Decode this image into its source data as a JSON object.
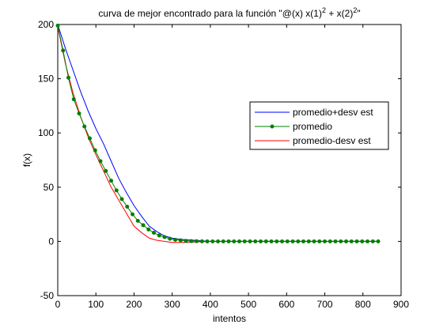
{
  "chart_data": {
    "type": "line",
    "title": "curva de mejor encontrado para la función \"@(x) x(1)",
    "title_exp1": "2",
    "title_mid": " + x(2)",
    "title_exp2": "2",
    "title_end": "\"",
    "xlabel": "intentos",
    "ylabel": "f(x)",
    "xlim": [
      0,
      900
    ],
    "ylim": [
      -50,
      200
    ],
    "xticks": [
      0,
      100,
      200,
      300,
      400,
      500,
      600,
      700,
      800,
      900
    ],
    "yticks": [
      -50,
      0,
      50,
      100,
      150,
      200
    ],
    "grid": false,
    "legend_position": "right",
    "series": [
      {
        "name": "promedio+desv est",
        "color": "#0000ff",
        "marker": "none",
        "x": [
          0,
          20,
          40,
          60,
          80,
          100,
          120,
          140,
          160,
          180,
          200,
          220,
          240,
          260,
          280,
          300,
          320,
          340,
          360,
          380,
          400,
          500,
          600,
          700,
          840
        ],
        "y": [
          200,
          178,
          158,
          138,
          120,
          104,
          90,
          74,
          58,
          45,
          33,
          23,
          14,
          9,
          5,
          3,
          2,
          1.5,
          1,
          0.5,
          0,
          0,
          0,
          0,
          0
        ]
      },
      {
        "name": "promedio",
        "color": "#008000",
        "marker": "dot",
        "x": [
          0,
          14,
          28,
          42,
          56,
          70,
          84,
          98,
          112,
          126,
          140,
          154,
          168,
          182,
          196,
          210,
          224,
          238,
          252,
          266,
          280,
          294,
          308,
          322,
          336,
          350,
          364,
          378,
          392,
          406,
          420,
          434,
          448,
          462,
          476,
          490,
          504,
          518,
          532,
          546,
          560,
          574,
          588,
          602,
          616,
          630,
          644,
          658,
          672,
          686,
          700,
          714,
          728,
          742,
          756,
          770,
          784,
          798,
          812,
          826,
          840
        ],
        "y": [
          199,
          176,
          151,
          131,
          118,
          106,
          95,
          84,
          74,
          65,
          56,
          47,
          39,
          32,
          25,
          19,
          15,
          11,
          8,
          5.5,
          4,
          2.5,
          1.5,
          1,
          0.5,
          0.3,
          0.2,
          0.1,
          0,
          0,
          0,
          0,
          0,
          0,
          0,
          0,
          0,
          0,
          0,
          0,
          0,
          0,
          0,
          0,
          0,
          0,
          0,
          0,
          0,
          0,
          0,
          0,
          0,
          0,
          0,
          0,
          0,
          0,
          0,
          0,
          0
        ]
      },
      {
        "name": "promedio-desv est",
        "color": "#ff0000",
        "marker": "none",
        "x": [
          0,
          20,
          40,
          60,
          80,
          100,
          120,
          140,
          160,
          180,
          200,
          220,
          240,
          260,
          280,
          300,
          320,
          340,
          360,
          400,
          500,
          600,
          700,
          840
        ],
        "y": [
          198,
          164,
          137,
          115,
          96,
          80,
          65,
          50,
          38,
          26,
          14,
          8,
          3,
          1,
          0,
          -1,
          -1,
          -1,
          -0.5,
          0,
          0,
          0,
          0,
          0
        ]
      }
    ]
  }
}
